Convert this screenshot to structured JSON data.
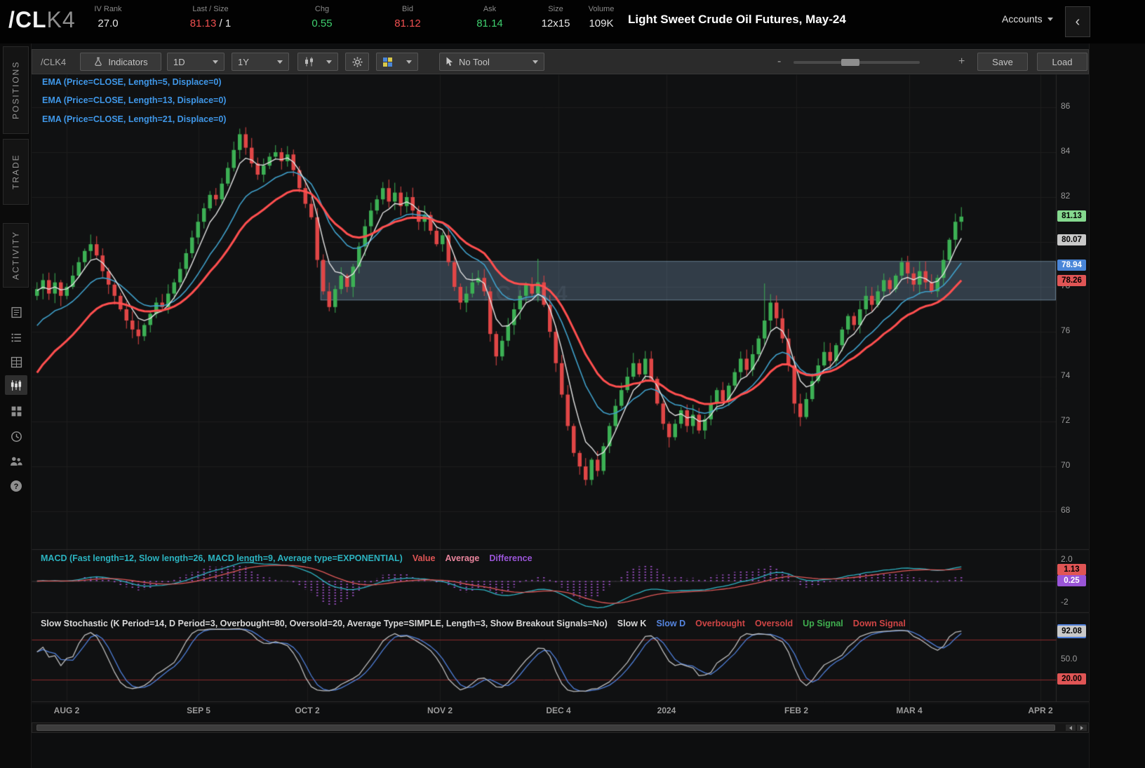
{
  "topbar": {
    "symbol_main": "/CL",
    "symbol_suffix": "K4",
    "title": "Light Sweet Crude Oil Futures, May-24",
    "accounts_label": "Accounts",
    "collapse_icon": "‹",
    "fields": [
      {
        "label": "IV Rank",
        "value": "27.0",
        "color": "#e6e6e6"
      },
      {
        "label": "Last / Size",
        "value": "81.13",
        "value2": " / 1",
        "color": "#f05050"
      },
      {
        "label": "Chg",
        "value": "0.55",
        "color": "#3fd06f"
      },
      {
        "label": "Bid",
        "value": "81.12",
        "color": "#f05050"
      },
      {
        "label": "Ask",
        "value": "81.14",
        "color": "#3fd06f"
      },
      {
        "label": "Size",
        "value": "12x15",
        "color": "#e6e6e6"
      },
      {
        "label": "Volume",
        "value": "109K",
        "color": "#e6e6e6"
      }
    ]
  },
  "sidebar": {
    "tabs": [
      {
        "label": "POSITIONS"
      },
      {
        "label": "TRADE"
      },
      {
        "label": "ACTIVITY"
      }
    ]
  },
  "toolbar": {
    "symbol": "/CLK4",
    "indicators_label": "Indicators",
    "timeframe_value": "1D",
    "range_value": "1Y",
    "tool_value": "No Tool",
    "zoom_minus": "-",
    "zoom_plus": "+",
    "save_label": "Save",
    "load_label": "Load"
  },
  "chart": {
    "ema_labels": [
      "EMA (Price=CLOSE, Length=5, Displace=0)",
      "EMA (Price=CLOSE, Length=13, Displace=0)",
      "EMA (Price=CLOSE, Length=21, Displace=0)"
    ],
    "watermark": "/CLK4",
    "y_axis": [
      "86",
      "84",
      "82",
      "80",
      "78",
      "76",
      "74",
      "72",
      "70",
      "68"
    ],
    "price_badges": [
      {
        "name": "last-price",
        "value": "81.13",
        "bg": "#85d98f",
        "fg": "#000000"
      },
      {
        "name": "ema5-value",
        "value": "80.07",
        "bg": "#c9c9c9",
        "fg": "#000000"
      },
      {
        "name": "ema13-value",
        "value": "78.94",
        "bg": "#4a86d8",
        "fg": "#ffffff"
      },
      {
        "name": "ema21-value",
        "value": "78.26",
        "bg": "#e05555",
        "fg": "#000000"
      }
    ],
    "x_axis": [
      "AUG 2",
      "SEP 5",
      "OCT 2",
      "NOV 2",
      "DEC 4",
      "2024",
      "FEB 2",
      "MAR 4",
      "APR 2"
    ]
  },
  "macd": {
    "label": "MACD (Fast length=12, Slow length=26, MACD length=9, Average type=EXPONENTIAL)",
    "label_color": "#2bb3c0",
    "legend": [
      {
        "text": "Value",
        "color": "#e05555"
      },
      {
        "text": "Average",
        "color": "#e8849c"
      },
      {
        "text": "Difference",
        "color": "#9a55d8"
      }
    ],
    "axis_top": "2.0",
    "axis_bottom": "-2",
    "badges": [
      {
        "value": "1.13",
        "bg": "#e05555",
        "fg": "#000000"
      },
      {
        "value": "0.25",
        "bg": "#9a55d8",
        "fg": "#ffffff"
      }
    ]
  },
  "stoch": {
    "label": "Slow Stochastic (K Period=14, D Period=3, Overbought=80, Oversold=20, Average Type=SIMPLE, Length=3, Show Breakout Signals=No)",
    "label_color": "#d8d8d8",
    "legend": [
      {
        "text": "Slow K",
        "color": "#d8d8d8"
      },
      {
        "text": "Slow D",
        "color": "#5585e0"
      },
      {
        "text": "Overbought",
        "color": "#cf4545"
      },
      {
        "text": "Oversold",
        "color": "#cf4545"
      },
      {
        "text": "Up Signal",
        "color": "#3fae4f"
      },
      {
        "text": "Down Signal",
        "color": "#cf4545"
      }
    ],
    "axis_mid": "50.0",
    "badges": [
      {
        "value": "92.08",
        "bg": "#c9c9c9",
        "fg": "#000000"
      },
      {
        "value": "20.00",
        "bg": "#e05555",
        "fg": "#000000"
      }
    ]
  },
  "chart_data": {
    "type": "candlestick",
    "symbol": "/CLK4",
    "timeframe": "1D",
    "range": "1Y",
    "ylim": [
      67.5,
      87.5
    ],
    "x_labels": [
      "AUG 2",
      "SEP 5",
      "OCT 2",
      "NOV 2",
      "DEC 4",
      "2024",
      "FEB 2",
      "MAR 4",
      "APR 2"
    ],
    "closes": [
      77.9,
      78.3,
      77.7,
      78.2,
      77.6,
      78.0,
      78.5,
      79.1,
      79.6,
      79.9,
      79.4,
      78.7,
      78.1,
      77.6,
      77.0,
      76.5,
      76.1,
      75.8,
      76.3,
      76.8,
      77.3,
      77.1,
      77.7,
      78.2,
      78.8,
      79.5,
      80.2,
      80.9,
      81.5,
      82.1,
      81.9,
      82.6,
      83.3,
      84.1,
      84.8,
      84.2,
      83.5,
      83.0,
      83.4,
      83.8,
      84.0,
      83.6,
      83.9,
      83.2,
      82.4,
      81.7,
      81.1,
      79.2,
      77.8,
      77.1,
      77.9,
      78.5,
      78.0,
      78.9,
      79.8,
      80.7,
      81.4,
      81.9,
      82.4,
      81.8,
      82.2,
      81.6,
      82.0,
      81.4,
      80.9,
      81.2,
      80.5,
      79.9,
      80.3,
      79.1,
      78.0,
      77.3,
      77.7,
      78.2,
      78.4,
      77.8,
      75.9,
      74.9,
      75.6,
      76.3,
      77.0,
      77.6,
      78.1,
      77.7,
      78.2,
      77.2,
      76.0,
      74.6,
      73.2,
      71.8,
      70.6,
      70.0,
      69.4,
      70.3,
      69.8,
      70.9,
      71.8,
      72.7,
      73.4,
      74.0,
      74.6,
      74.1,
      74.8,
      73.9,
      72.8,
      71.9,
      71.3,
      71.9,
      72.5,
      71.8,
      72.3,
      71.6,
      72.1,
      72.8,
      73.4,
      72.9,
      73.6,
      74.2,
      74.8,
      74.3,
      75.0,
      75.7,
      76.5,
      77.3,
      76.6,
      75.7,
      74.5,
      72.8,
      72.2,
      73.0,
      73.8,
      74.5,
      75.1,
      74.7,
      75.4,
      76.1,
      76.7,
      76.3,
      77.0,
      77.6,
      77.2,
      77.8,
      78.3,
      77.9,
      78.5,
      79.1,
      78.6,
      78.1,
      78.7,
      78.2,
      77.8,
      78.4,
      79.2,
      80.1,
      80.9,
      81.13
    ],
    "overlays": {
      "emas": [
        5,
        13,
        21
      ],
      "zone": {
        "top": 79.15,
        "bottom": 77.4,
        "start_index": 48
      }
    },
    "indicators": {
      "macd": {
        "fast": 12,
        "slow": 26,
        "length": 9,
        "average_type": "EXPONENTIAL"
      },
      "slow_stochastic": {
        "k_period": 14,
        "d_period": 3,
        "overbought": 80,
        "oversold": 20
      }
    }
  },
  "colors": {
    "up": "#3cb054",
    "down": "#e04646",
    "ema5": "#e2e2e2",
    "ema13": "#3f9fc9",
    "ema21": "#ff4f4f",
    "macd_value": "#2fb5c5",
    "macd_avg": "#e05858",
    "macd_hist": "#a855d4",
    "stoch_k": "#bcbcbc",
    "stoch_d": "#4f7fd9",
    "ob_os": "#8a2a2a",
    "zone_fill": "rgba(130,165,200,0.30)",
    "zone_stroke": "rgba(160,195,225,0.45)",
    "grid": "#1d1d1d",
    "axis_text": "#999999"
  }
}
